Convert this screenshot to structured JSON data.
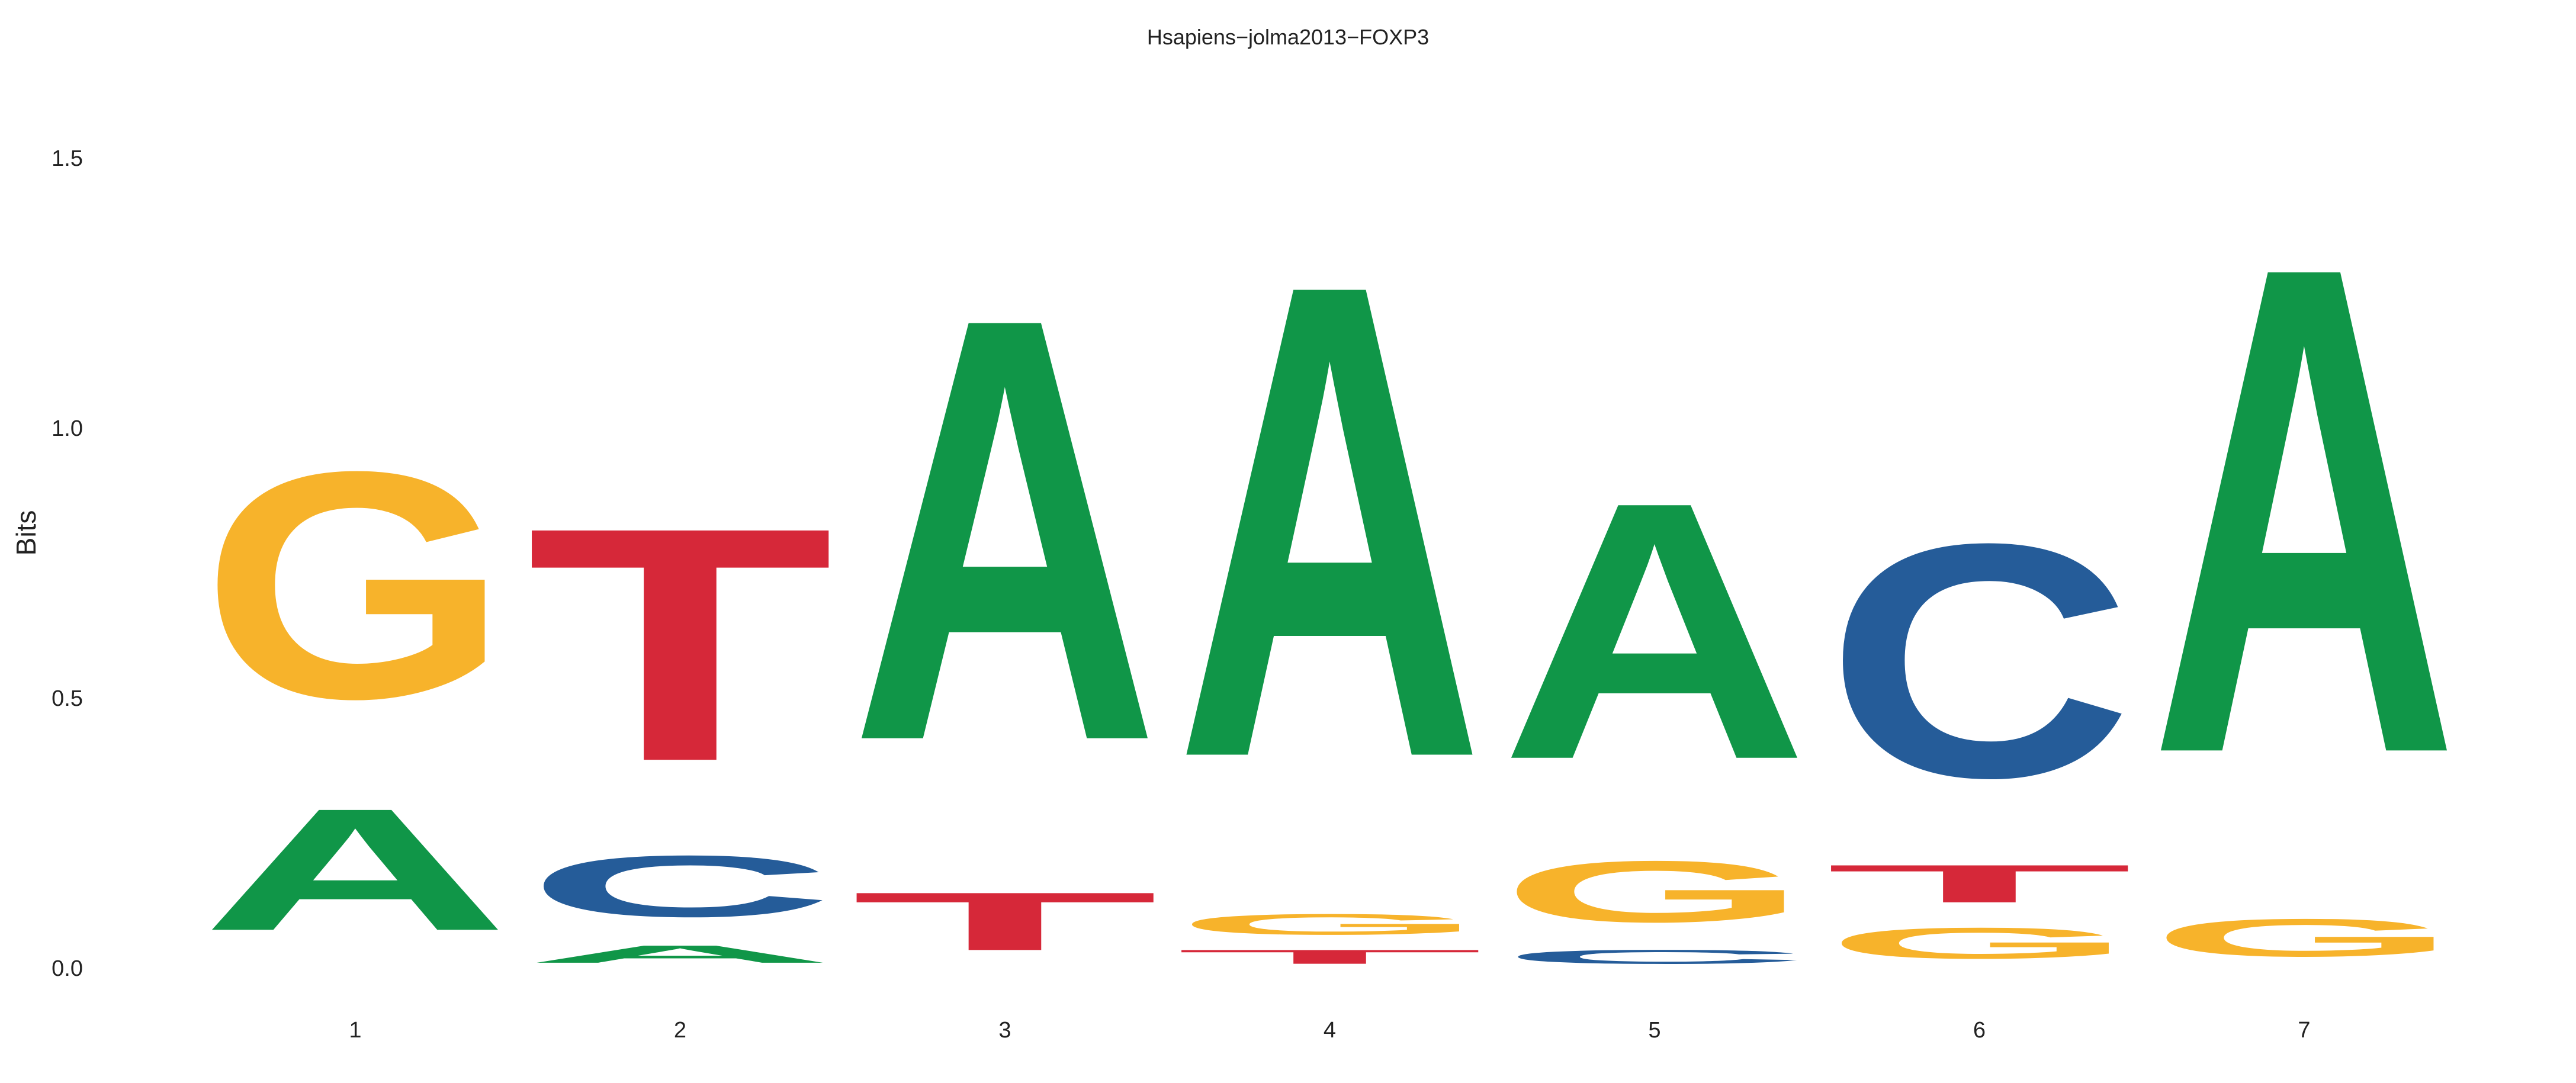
{
  "chart_data": {
    "type": "sequence-logo",
    "title": "Hsapiens−jolma2013−FOXP3",
    "xlabel": "",
    "ylabel": "Bits",
    "ylim": [
      0,
      1.6
    ],
    "yticks": [
      0.0,
      0.5,
      1.0,
      1.5
    ],
    "ytick_labels": [
      "0.0",
      "0.5",
      "1.0",
      "1.5"
    ],
    "colors": {
      "A": "#109648",
      "C": "#255C99",
      "G": "#F7B32B",
      "T": "#D62839"
    },
    "positions": [
      {
        "label": "1",
        "stack": [
          {
            "base": "A",
            "bits": 0.37
          },
          {
            "base": "G",
            "bits": 0.68
          }
        ]
      },
      {
        "label": "2",
        "stack": [
          {
            "base": "A",
            "bits": 0.06
          },
          {
            "base": "C",
            "bits": 0.19
          },
          {
            "base": "T",
            "bits": 0.7
          }
        ]
      },
      {
        "label": "3",
        "stack": [
          {
            "base": "T",
            "bits": 0.18
          },
          {
            "base": "A",
            "bits": 1.26
          }
        ]
      },
      {
        "label": "4",
        "stack": [
          {
            "base": "T",
            "bits": 0.05
          },
          {
            "base": "G",
            "bits": 0.07
          },
          {
            "base": "A",
            "bits": 1.41
          }
        ]
      },
      {
        "label": "5",
        "stack": [
          {
            "base": "C",
            "bits": 0.05
          },
          {
            "base": "G",
            "bits": 0.19
          },
          {
            "base": "A",
            "bits": 0.77
          }
        ]
      },
      {
        "label": "6",
        "stack": [
          {
            "base": "G",
            "bits": 0.1
          },
          {
            "base": "T",
            "bits": 0.12
          },
          {
            "base": "C",
            "bits": 0.7
          }
        ]
      },
      {
        "label": "7",
        "stack": [
          {
            "base": "G",
            "bits": 0.12
          },
          {
            "base": "A",
            "bits": 1.45
          }
        ]
      }
    ]
  }
}
